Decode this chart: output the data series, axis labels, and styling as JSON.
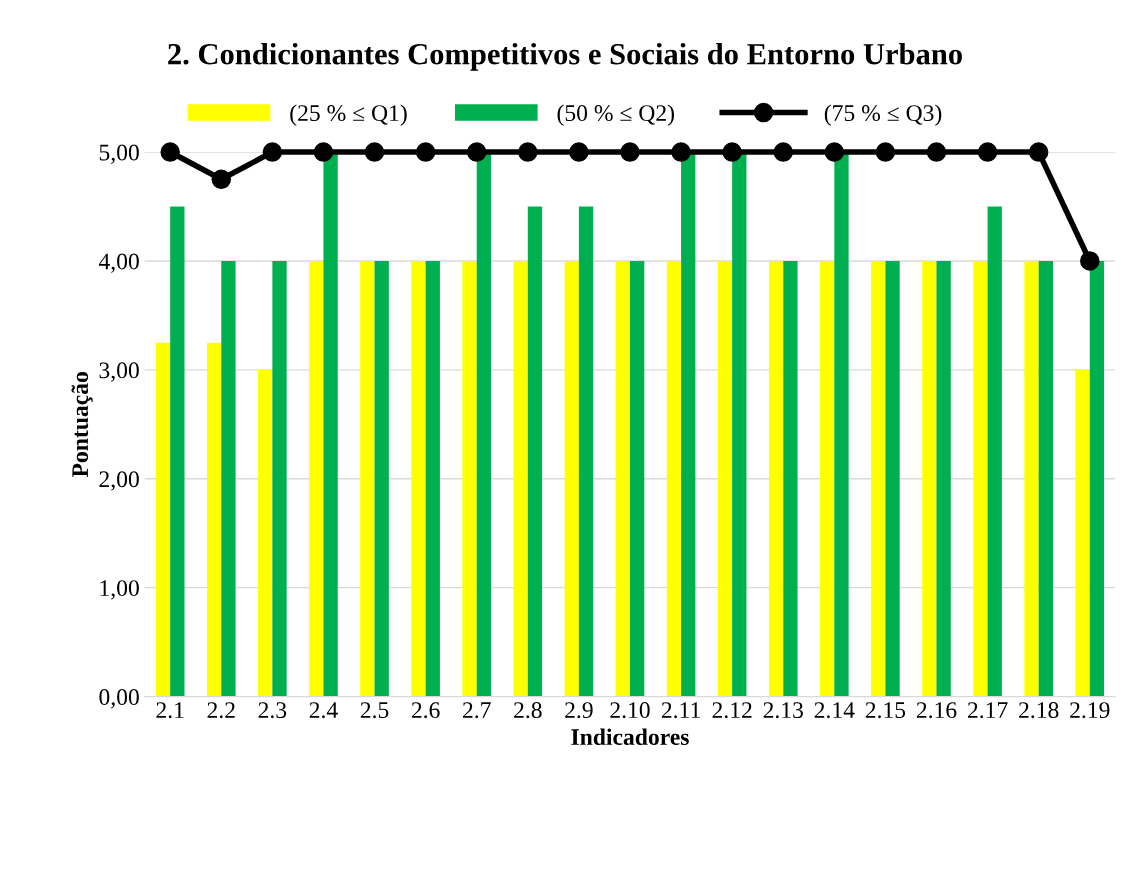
{
  "chart_data": {
    "type": "bar",
    "title": "2. Condicionantes Competitivos e Sociais do Entorno Urbano",
    "xlabel": "Indicadores",
    "ylabel": "Pontuação",
    "categories": [
      "2.1",
      "2.2",
      "2.3",
      "2.4",
      "2.5",
      "2.6",
      "2.7",
      "2.8",
      "2.9",
      "2.10",
      "2.11",
      "2.12",
      "2.13",
      "2.14",
      "2.15",
      "2.16",
      "2.17",
      "2.18",
      "2.19"
    ],
    "series": [
      {
        "name": "(25 % ≤ Q1)",
        "color": "#ffff00",
        "values": [
          3.25,
          3.25,
          3,
          4,
          4,
          4,
          4,
          4,
          4,
          4,
          4,
          4,
          4,
          4,
          4,
          4,
          4,
          4,
          3
        ]
      },
      {
        "name": "(50 % ≤ Q2)",
        "color": "#00b050",
        "values": [
          4.5,
          4,
          4,
          5,
          4,
          4,
          5,
          4.5,
          4.5,
          4,
          5,
          5,
          4,
          5,
          4,
          4,
          4.5,
          4,
          4
        ]
      },
      {
        "name": "(75 % ≤ Q3)",
        "color": "#000000",
        "type": "line",
        "values": [
          5,
          4.75,
          5,
          5,
          5,
          5,
          5,
          5,
          5,
          5,
          5,
          5,
          5,
          5,
          5,
          5,
          5,
          5,
          4
        ]
      }
    ],
    "ylim": [
      0,
      5
    ],
    "yticks": [
      {
        "value": 0,
        "label": "0,00"
      },
      {
        "value": 1,
        "label": "1,00"
      },
      {
        "value": 2,
        "label": "2,00"
      },
      {
        "value": 3,
        "label": "3,00"
      },
      {
        "value": 4,
        "label": "4,00"
      },
      {
        "value": 5,
        "label": "5,00"
      }
    ],
    "grid": "y",
    "legend": "top",
    "marker": "circle",
    "line_style": "solid"
  }
}
